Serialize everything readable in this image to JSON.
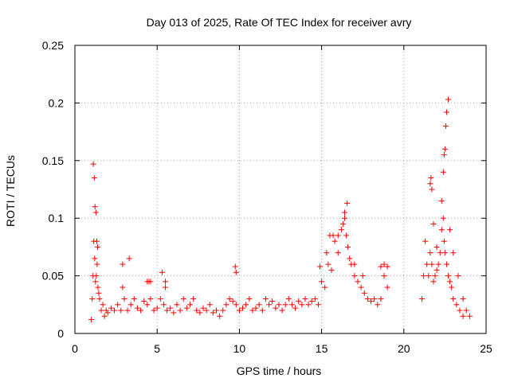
{
  "chart_data": {
    "type": "scatter",
    "title": "Day 013 of 2025, Rate Of TEC Index for receiver avry",
    "xlabel": "GPS time / hours",
    "ylabel": "ROTI / TECUs",
    "xlim": [
      0,
      25
    ],
    "ylim": [
      0,
      0.25
    ],
    "xticks": [
      0,
      5,
      10,
      15,
      20,
      25
    ],
    "yticks": [
      0,
      0.05,
      0.1,
      0.15,
      0.2,
      0.25
    ],
    "xtick_labels": [
      "0",
      "5",
      "10",
      "15",
      "20",
      "25"
    ],
    "ytick_labels": [
      "0",
      "0.05",
      "0.1",
      "0.15",
      "0.2",
      "0.25"
    ],
    "grid": true,
    "marker": "+",
    "color": "#ff0000",
    "series": [
      {
        "name": "ROTI",
        "x": [
          1.0,
          1.05,
          1.1,
          1.15,
          1.2,
          1.25,
          1.3,
          1.35,
          1.4,
          1.45,
          1.5,
          1.6,
          1.7,
          1.8,
          1.9,
          2.0,
          2.2,
          2.4,
          2.6,
          2.8,
          2.9,
          3.0,
          3.2,
          3.4,
          3.6,
          3.8,
          4.0,
          4.2,
          4.4,
          4.5,
          4.6,
          4.8,
          5.0,
          5.2,
          5.4,
          5.5,
          5.6,
          5.8,
          6.0,
          6.2,
          6.4,
          6.6,
          6.8,
          7.0,
          7.2,
          7.4,
          7.6,
          7.8,
          8.0,
          8.2,
          8.4,
          8.6,
          8.8,
          9.0,
          9.2,
          9.4,
          9.6,
          9.8,
          10.0,
          10.2,
          10.4,
          10.6,
          10.8,
          11.0,
          11.2,
          11.4,
          11.6,
          11.8,
          12.0,
          12.2,
          12.4,
          12.6,
          12.8,
          13.0,
          13.2,
          13.4,
          13.6,
          13.8,
          14.0,
          14.2,
          14.4,
          14.6,
          14.8,
          15.0,
          15.2,
          15.4,
          15.6,
          15.8,
          16.0,
          16.2,
          16.4,
          16.5,
          16.6,
          16.8,
          17.0,
          17.2,
          17.4,
          17.6,
          17.8,
          18.0,
          18.2,
          18.4,
          18.6,
          18.8,
          19.0,
          21.1,
          21.2,
          21.3,
          21.4,
          21.5,
          21.6,
          21.7,
          21.8,
          21.9,
          22.0,
          22.1,
          22.2,
          22.3,
          22.4,
          22.45,
          22.5,
          22.6,
          22.7,
          22.8,
          22.9,
          23.0,
          23.2,
          23.4,
          23.6,
          23.8,
          24.0,
          1.12,
          1.18,
          1.22,
          1.28,
          1.33,
          1.38,
          2.9,
          3.3,
          4.4,
          4.6,
          5.3,
          5.5,
          9.75,
          9.8,
          14.9,
          15.3,
          15.5,
          15.7,
          16.0,
          16.3,
          16.4,
          16.55,
          16.7,
          17.0,
          17.5,
          18.6,
          18.8,
          19.0,
          21.6,
          21.65,
          21.7,
          21.8,
          22.0,
          22.3,
          22.4,
          22.45,
          22.5,
          22.55,
          22.6,
          22.7,
          22.8,
          23.0,
          23.3,
          23.6
        ],
        "y": [
          0.012,
          0.03,
          0.05,
          0.08,
          0.065,
          0.045,
          0.05,
          0.06,
          0.04,
          0.035,
          0.03,
          0.02,
          0.025,
          0.015,
          0.02,
          0.018,
          0.022,
          0.02,
          0.025,
          0.02,
          0.04,
          0.03,
          0.02,
          0.025,
          0.03,
          0.022,
          0.02,
          0.028,
          0.025,
          0.045,
          0.03,
          0.02,
          0.022,
          0.03,
          0.025,
          0.04,
          0.02,
          0.022,
          0.018,
          0.025,
          0.02,
          0.03,
          0.022,
          0.025,
          0.03,
          0.02,
          0.018,
          0.022,
          0.02,
          0.025,
          0.018,
          0.02,
          0.015,
          0.02,
          0.025,
          0.03,
          0.028,
          0.025,
          0.02,
          0.022,
          0.025,
          0.03,
          0.02,
          0.022,
          0.025,
          0.02,
          0.03,
          0.025,
          0.028,
          0.022,
          0.025,
          0.02,
          0.025,
          0.03,
          0.025,
          0.022,
          0.028,
          0.025,
          0.03,
          0.025,
          0.028,
          0.03,
          0.025,
          0.045,
          0.04,
          0.06,
          0.055,
          0.08,
          0.07,
          0.09,
          0.1,
          0.085,
          0.075,
          0.06,
          0.05,
          0.045,
          0.04,
          0.035,
          0.03,
          0.028,
          0.03,
          0.025,
          0.03,
          0.05,
          0.04,
          0.03,
          0.05,
          0.08,
          0.06,
          0.05,
          0.07,
          0.06,
          0.045,
          0.05,
          0.055,
          0.06,
          0.07,
          0.09,
          0.1,
          0.08,
          0.07,
          0.06,
          0.05,
          0.045,
          0.04,
          0.03,
          0.025,
          0.02,
          0.015,
          0.02,
          0.015,
          0.147,
          0.135,
          0.11,
          0.105,
          0.08,
          0.075,
          0.06,
          0.065,
          0.045,
          0.045,
          0.053,
          0.045,
          0.058,
          0.053,
          0.058,
          0.07,
          0.085,
          0.085,
          0.085,
          0.095,
          0.105,
          0.113,
          0.065,
          0.06,
          0.05,
          0.058,
          0.06,
          0.058,
          0.13,
          0.135,
          0.125,
          0.095,
          0.075,
          0.115,
          0.14,
          0.155,
          0.16,
          0.18,
          0.192,
          0.203,
          0.09,
          0.07,
          0.05,
          0.03
        ]
      }
    ]
  }
}
